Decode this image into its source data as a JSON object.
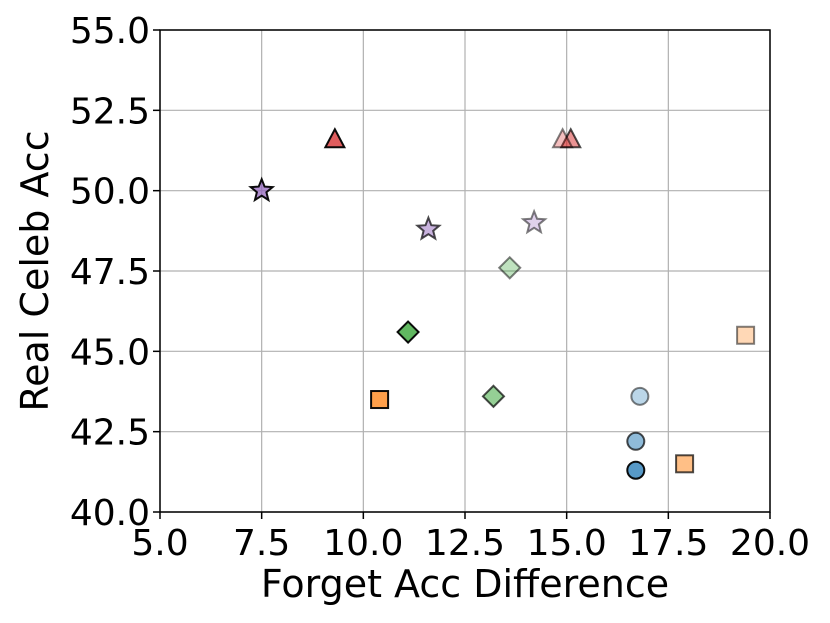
{
  "chart_data": {
    "type": "scatter",
    "title": "",
    "xlabel": "Forget Acc Difference",
    "ylabel": "Real Celeb Acc",
    "xlim": [
      5.0,
      20.0
    ],
    "ylim": [
      40.0,
      55.0
    ],
    "xticks": [
      "5.0",
      "7.5",
      "10.0",
      "12.5",
      "15.0",
      "17.5",
      "20.0"
    ],
    "yticks": [
      "40.0",
      "42.5",
      "45.0",
      "47.5",
      "50.0",
      "52.5",
      "55.0"
    ],
    "grid": true,
    "legend": "none",
    "series": [
      {
        "marker": "circle",
        "color": "#1f77b4",
        "opacity": 0.75,
        "points": [
          [
            16.7,
            41.3
          ]
        ]
      },
      {
        "marker": "circle",
        "color": "#1f77b4",
        "opacity": 0.5,
        "points": [
          [
            16.7,
            42.2
          ]
        ]
      },
      {
        "marker": "circle",
        "color": "#1f77b4",
        "opacity": 0.3,
        "points": [
          [
            16.8,
            43.6
          ]
        ]
      },
      {
        "marker": "square",
        "color": "#ff7f0e",
        "opacity": 0.75,
        "points": [
          [
            10.4,
            43.5
          ]
        ]
      },
      {
        "marker": "square",
        "color": "#ff7f0e",
        "opacity": 0.5,
        "points": [
          [
            17.9,
            41.5
          ]
        ]
      },
      {
        "marker": "square",
        "color": "#ff7f0e",
        "opacity": 0.3,
        "points": [
          [
            19.4,
            45.5
          ]
        ]
      },
      {
        "marker": "diamond",
        "color": "#2ca02c",
        "opacity": 0.75,
        "points": [
          [
            11.1,
            45.6
          ]
        ]
      },
      {
        "marker": "diamond",
        "color": "#2ca02c",
        "opacity": 0.5,
        "points": [
          [
            13.2,
            43.6
          ]
        ]
      },
      {
        "marker": "diamond",
        "color": "#2ca02c",
        "opacity": 0.3,
        "points": [
          [
            13.6,
            47.6
          ]
        ]
      },
      {
        "marker": "triangle",
        "color": "#d62728",
        "opacity": 0.75,
        "points": [
          [
            9.3,
            51.6
          ]
        ]
      },
      {
        "marker": "triangle",
        "color": "#d62728",
        "opacity": 0.5,
        "points": [
          [
            15.1,
            51.6
          ]
        ]
      },
      {
        "marker": "triangle",
        "color": "#d62728",
        "opacity": 0.3,
        "points": [
          [
            14.9,
            51.6
          ]
        ]
      },
      {
        "marker": "star",
        "color": "#9467bd",
        "opacity": 0.75,
        "points": [
          [
            7.5,
            50.0
          ]
        ]
      },
      {
        "marker": "star",
        "color": "#9467bd",
        "opacity": 0.5,
        "points": [
          [
            11.6,
            48.8
          ]
        ]
      },
      {
        "marker": "star",
        "color": "#9467bd",
        "opacity": 0.3,
        "points": [
          [
            14.2,
            49.0
          ]
        ]
      }
    ]
  }
}
